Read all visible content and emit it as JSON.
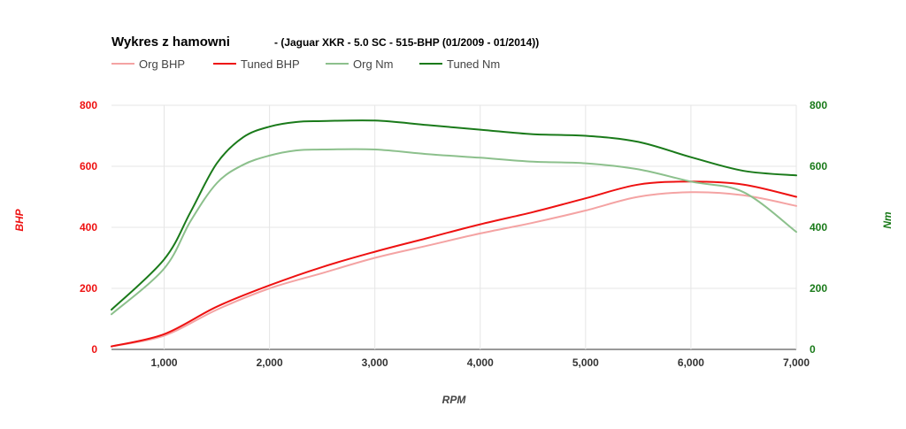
{
  "chart_data": {
    "type": "line",
    "title": "Wykres z hamowni",
    "subtitle": "- (Jaguar XKR - 5.0 SC - 515-BHP (01/2009 - 01/2014))",
    "xlabel": "RPM",
    "ylabel_left": "BHP",
    "ylabel_right": "Nm",
    "xlim": [
      500,
      7000
    ],
    "ylim_left": [
      0,
      800
    ],
    "ylim_right": [
      0,
      800
    ],
    "x_ticks": [
      1000,
      2000,
      3000,
      4000,
      5000,
      6000,
      7000
    ],
    "x_tick_labels": [
      "1,000",
      "2,000",
      "3,000",
      "4,000",
      "5,000",
      "6,000",
      "7,000"
    ],
    "y_ticks_left": [
      0,
      200,
      400,
      600,
      800
    ],
    "y_tick_labels_left": [
      "0",
      "200",
      "400",
      "600",
      "800"
    ],
    "y_ticks_right": [
      0,
      200,
      400,
      600,
      800
    ],
    "y_tick_labels_right": [
      "0",
      "200",
      "400",
      "600",
      "800"
    ],
    "grid": true,
    "legend_position": "top-left",
    "colors": {
      "left_axis": "#ee1111",
      "right_axis": "#1a7a1a",
      "grid": "#e6e6e6"
    },
    "series": [
      {
        "name": "Org BHP",
        "axis": "left",
        "color": "#f4a3a3",
        "x": [
          500,
          1000,
          1500,
          2000,
          2500,
          3000,
          3500,
          4000,
          4500,
          5000,
          5500,
          6000,
          6500,
          7000
        ],
        "values": [
          10,
          45,
          130,
          200,
          250,
          300,
          340,
          380,
          415,
          455,
          500,
          515,
          505,
          470
        ]
      },
      {
        "name": "Tuned BHP",
        "axis": "left",
        "color": "#ee1111",
        "x": [
          500,
          1000,
          1500,
          2000,
          2500,
          3000,
          3500,
          4000,
          4500,
          5000,
          5500,
          6000,
          6500,
          7000
        ],
        "values": [
          10,
          50,
          140,
          210,
          270,
          320,
          365,
          410,
          450,
          495,
          540,
          550,
          540,
          500
        ]
      },
      {
        "name": "Org Nm",
        "axis": "right",
        "color": "#8cc08c",
        "x": [
          500,
          1000,
          1250,
          1500,
          1750,
          2000,
          2250,
          2500,
          3000,
          3500,
          4000,
          4500,
          5000,
          5500,
          6000,
          6500,
          7000
        ],
        "values": [
          115,
          265,
          420,
          545,
          605,
          635,
          652,
          655,
          655,
          640,
          628,
          615,
          610,
          590,
          550,
          515,
          385
        ]
      },
      {
        "name": "Tuned Nm",
        "axis": "right",
        "color": "#1a7a1a",
        "x": [
          500,
          1000,
          1250,
          1500,
          1750,
          2000,
          2250,
          2500,
          3000,
          3500,
          4000,
          4500,
          5000,
          5500,
          6000,
          6500,
          7000
        ],
        "values": [
          130,
          295,
          450,
          610,
          695,
          730,
          745,
          748,
          750,
          735,
          720,
          705,
          700,
          680,
          630,
          585,
          570
        ]
      }
    ]
  }
}
